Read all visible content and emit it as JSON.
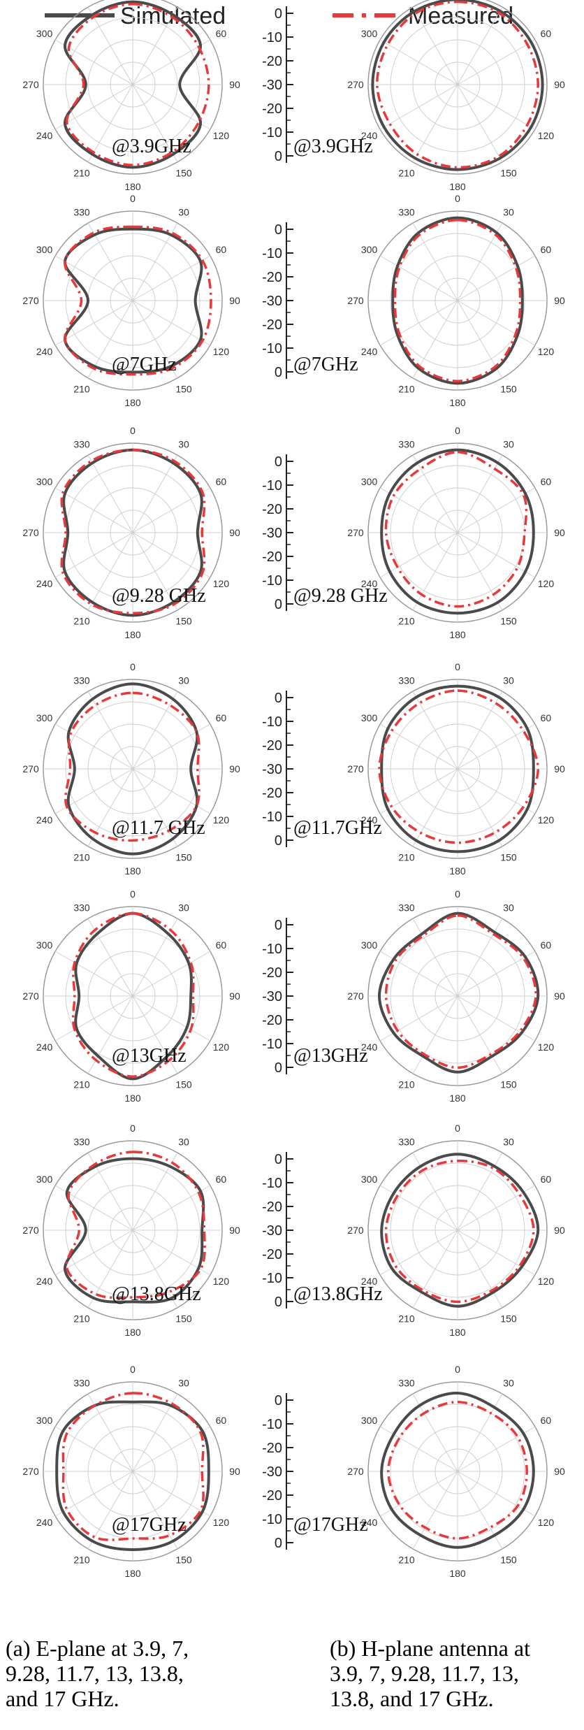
{
  "legend": {
    "position": "top",
    "items": [
      {
        "label": "Simulated",
        "color": "#4a4a4a",
        "style": "solid"
      },
      {
        "label": "Measured",
        "color": "#e8383a",
        "style": "dash-dot"
      }
    ]
  },
  "angle_labels": [
    "0",
    "30",
    "60",
    "90",
    "120",
    "150",
    "180",
    "210",
    "240",
    "270",
    "300",
    "330"
  ],
  "scale_ticks_default": [
    "0",
    "-10",
    "-20",
    "-30",
    "-20",
    "-10",
    "0"
  ],
  "scale_ticks_third_row": [
    "0",
    "-10",
    "-20",
    "-30",
    "-20",
    "-10",
    "0"
  ],
  "captions": {
    "a": [
      "(a) E-plane at 3.9, 7,",
      "9.28, 11.7, 13, 13.8,",
      "and 17 GHz."
    ],
    "b": [
      "(b) H-plane antenna at",
      "3.9,  7,  9.28, 11.7, 13,",
      "13.8, and 17 GHz."
    ]
  },
  "colors": {
    "simulated": "#4a4a4a",
    "measured": "#e8383a",
    "grid": "#d0d0d0"
  },
  "chart_data": [
    {
      "type": "polar",
      "plane": "E",
      "freq_label": "@3.9GHz",
      "rlim": [
        -40,
        0
      ],
      "angles": [
        0,
        30,
        60,
        90,
        120,
        150,
        180,
        210,
        240,
        270,
        300,
        330
      ],
      "series": [
        {
          "name": "Simulated",
          "values": [
            -3,
            -4,
            -5,
            -19,
            -5,
            -4,
            -3,
            -4,
            -5,
            -19,
            -5,
            -4
          ]
        },
        {
          "name": "Measured",
          "values": [
            -4,
            -5,
            -6,
            -6,
            -6,
            -5,
            -4,
            -5,
            -6,
            -18,
            -7,
            -5
          ]
        }
      ]
    },
    {
      "type": "polar",
      "plane": "H",
      "freq_label": "@3.9GHz",
      "rlim": [
        -40,
        0
      ],
      "angles": [
        0,
        30,
        60,
        90,
        120,
        150,
        180,
        210,
        240,
        270,
        300,
        330
      ],
      "series": [
        {
          "name": "Simulated",
          "values": [
            -2,
            -2,
            -2,
            -2,
            -2,
            -2,
            -2,
            -2,
            -2,
            -2,
            -2,
            -2
          ]
        },
        {
          "name": "Measured",
          "values": [
            -3,
            -3,
            -4,
            -4,
            -4,
            -3,
            -3,
            -4,
            -5,
            -4,
            -4,
            -3
          ]
        }
      ]
    },
    {
      "type": "polar",
      "plane": "E",
      "freq_label": "@7GHz",
      "rlim": [
        -40,
        0
      ],
      "angles": [
        0,
        30,
        60,
        90,
        120,
        150,
        180,
        210,
        240,
        270,
        300,
        330
      ],
      "series": [
        {
          "name": "Simulated",
          "values": [
            -8,
            -6,
            -5,
            -12,
            -5,
            -6,
            -8,
            -6,
            -5,
            -20,
            -5,
            -6
          ]
        },
        {
          "name": "Measured",
          "values": [
            -7,
            -5,
            -4,
            -5,
            -4,
            -5,
            -7,
            -5,
            -5,
            -17,
            -5,
            -5
          ]
        }
      ]
    },
    {
      "type": "polar",
      "plane": "H",
      "freq_label": "@7GHz",
      "rlim": [
        -40,
        0
      ],
      "angles": [
        0,
        30,
        60,
        90,
        120,
        150,
        180,
        210,
        240,
        270,
        300,
        330
      ],
      "series": [
        {
          "name": "Simulated",
          "values": [
            -3,
            -5,
            -9,
            -11,
            -9,
            -5,
            -3,
            -5,
            -9,
            -11,
            -9,
            -5
          ]
        },
        {
          "name": "Measured",
          "values": [
            -4,
            -6,
            -10,
            -12,
            -10,
            -6,
            -4,
            -6,
            -10,
            -12,
            -10,
            -6
          ]
        }
      ]
    },
    {
      "type": "polar",
      "plane": "E",
      "freq_label": "@9.28 GHz",
      "rlim": [
        -40,
        0
      ],
      "angles": [
        0,
        30,
        60,
        90,
        120,
        150,
        180,
        210,
        240,
        270,
        300,
        330
      ],
      "series": [
        {
          "name": "Simulated",
          "values": [
            -3,
            -4,
            -5,
            -11,
            -5,
            -4,
            -3,
            -4,
            -5,
            -11,
            -5,
            -4
          ]
        },
        {
          "name": "Measured",
          "values": [
            -3,
            -3,
            -4,
            -9,
            -4,
            -3,
            -4,
            -3,
            -4,
            -10,
            -4,
            -3
          ]
        }
      ]
    },
    {
      "type": "polar",
      "plane": "H",
      "freq_label": "@9.28 GHz",
      "rlim": [
        -40,
        0
      ],
      "angles": [
        0,
        30,
        60,
        90,
        120,
        150,
        180,
        210,
        240,
        270,
        300,
        330
      ],
      "series": [
        {
          "name": "Simulated",
          "values": [
            -3,
            -4,
            -5,
            -6,
            -5,
            -4,
            -4,
            -4,
            -5,
            -6,
            -5,
            -4
          ]
        },
        {
          "name": "Measured",
          "values": [
            -4,
            -7,
            -6,
            -10,
            -9,
            -8,
            -7,
            -8,
            -9,
            -8,
            -7,
            -7
          ]
        }
      ]
    },
    {
      "type": "polar",
      "plane": "E",
      "freq_label": "@11.7 GHz",
      "rlim": [
        -40,
        0
      ],
      "angles": [
        0,
        30,
        60,
        90,
        120,
        150,
        180,
        210,
        240,
        270,
        300,
        330
      ],
      "series": [
        {
          "name": "Simulated",
          "values": [
            -2,
            -4,
            -7,
            -14,
            -7,
            -4,
            -2,
            -4,
            -7,
            -14,
            -7,
            -4
          ]
        },
        {
          "name": "Measured",
          "values": [
            -6,
            -7,
            -7,
            -11,
            -7,
            -8,
            -8,
            -7,
            -6,
            -12,
            -8,
            -7
          ]
        }
      ]
    },
    {
      "type": "polar",
      "plane": "H",
      "freq_label": "@11.7GHz",
      "rlim": [
        -40,
        0
      ],
      "angles": [
        0,
        30,
        60,
        90,
        120,
        150,
        180,
        210,
        240,
        270,
        300,
        330
      ],
      "series": [
        {
          "name": "Simulated",
          "values": [
            -3,
            -3,
            -4,
            -6,
            -4,
            -3,
            -3,
            -3,
            -4,
            -6,
            -4,
            -3
          ]
        },
        {
          "name": "Measured",
          "values": [
            -5,
            -6,
            -6,
            -4,
            -6,
            -7,
            -7,
            -7,
            -6,
            -5,
            -6,
            -6
          ]
        }
      ]
    },
    {
      "type": "polar",
      "plane": "E",
      "freq_label": "@13GHz",
      "rlim": [
        -40,
        0
      ],
      "angles": [
        0,
        30,
        60,
        90,
        120,
        150,
        180,
        210,
        240,
        270,
        300,
        330
      ],
      "series": [
        {
          "name": "Simulated",
          "values": [
            -3,
            -8,
            -11,
            -14,
            -12,
            -9,
            -3,
            -9,
            -11,
            -16,
            -11,
            -8
          ]
        },
        {
          "name": "Measured",
          "values": [
            -3,
            -6,
            -10,
            -13,
            -10,
            -7,
            -4,
            -7,
            -10,
            -14,
            -10,
            -6
          ]
        }
      ]
    },
    {
      "type": "polar",
      "plane": "H",
      "freq_label": "@13GHz",
      "rlim": [
        -40,
        0
      ],
      "angles": [
        0,
        30,
        60,
        90,
        120,
        150,
        180,
        210,
        240,
        270,
        300,
        330
      ],
      "series": [
        {
          "name": "Simulated",
          "values": [
            -3,
            -7,
            -5,
            -4,
            -7,
            -9,
            -6,
            -9,
            -7,
            -5,
            -7,
            -8
          ]
        },
        {
          "name": "Measured",
          "values": [
            -4,
            -8,
            -6,
            -5,
            -8,
            -10,
            -8,
            -10,
            -9,
            -8,
            -8,
            -9
          ]
        }
      ]
    },
    {
      "type": "polar",
      "plane": "E",
      "freq_label": "@13.8GHz",
      "rlim": [
        -40,
        0
      ],
      "angles": [
        0,
        30,
        60,
        90,
        120,
        150,
        180,
        210,
        240,
        270,
        300,
        330
      ],
      "series": [
        {
          "name": "Simulated",
          "values": [
            -8,
            -7,
            -5,
            -9,
            -6,
            -5,
            -8,
            -5,
            -5,
            -19,
            -6,
            -7
          ]
        },
        {
          "name": "Measured",
          "values": [
            -5,
            -5,
            -6,
            -8,
            -5,
            -8,
            -10,
            -7,
            -6,
            -16,
            -7,
            -6
          ]
        }
      ]
    },
    {
      "type": "polar",
      "plane": "H",
      "freq_label": "@13.8GHz",
      "rlim": [
        -40,
        0
      ],
      "angles": [
        0,
        30,
        60,
        90,
        120,
        150,
        180,
        210,
        240,
        270,
        300,
        330
      ],
      "series": [
        {
          "name": "Simulated",
          "values": [
            -6,
            -7,
            -6,
            -4,
            -7,
            -8,
            -6,
            -8,
            -6,
            -6,
            -7,
            -7
          ]
        },
        {
          "name": "Measured",
          "values": [
            -9,
            -8,
            -8,
            -6,
            -8,
            -9,
            -8,
            -9,
            -8,
            -8,
            -9,
            -9
          ]
        }
      ]
    },
    {
      "type": "polar",
      "plane": "E",
      "freq_label": "@17GHz",
      "rlim": [
        -40,
        0
      ],
      "angles": [
        0,
        30,
        60,
        90,
        120,
        150,
        180,
        210,
        240,
        270,
        300,
        330
      ],
      "series": [
        {
          "name": "Simulated",
          "values": [
            -9,
            -6,
            -4,
            -6,
            -4,
            -4,
            -5,
            -4,
            -4,
            -6,
            -4,
            -6
          ]
        },
        {
          "name": "Measured",
          "values": [
            -5,
            -5,
            -5,
            -9,
            -5,
            -7,
            -10,
            -6,
            -6,
            -9,
            -6,
            -6
          ]
        }
      ]
    },
    {
      "type": "polar",
      "plane": "H",
      "freq_label": "@17GHz",
      "rlim": [
        -40,
        0
      ],
      "angles": [
        0,
        30,
        60,
        90,
        120,
        150,
        180,
        210,
        240,
        270,
        300,
        330
      ],
      "series": [
        {
          "name": "Simulated",
          "values": [
            -5,
            -7,
            -6,
            -6,
            -6,
            -7,
            -6,
            -7,
            -6,
            -6,
            -7,
            -6
          ]
        },
        {
          "name": "Measured",
          "values": [
            -9,
            -10,
            -9,
            -9,
            -9,
            -11,
            -10,
            -11,
            -10,
            -9,
            -10,
            -10
          ]
        }
      ]
    }
  ]
}
